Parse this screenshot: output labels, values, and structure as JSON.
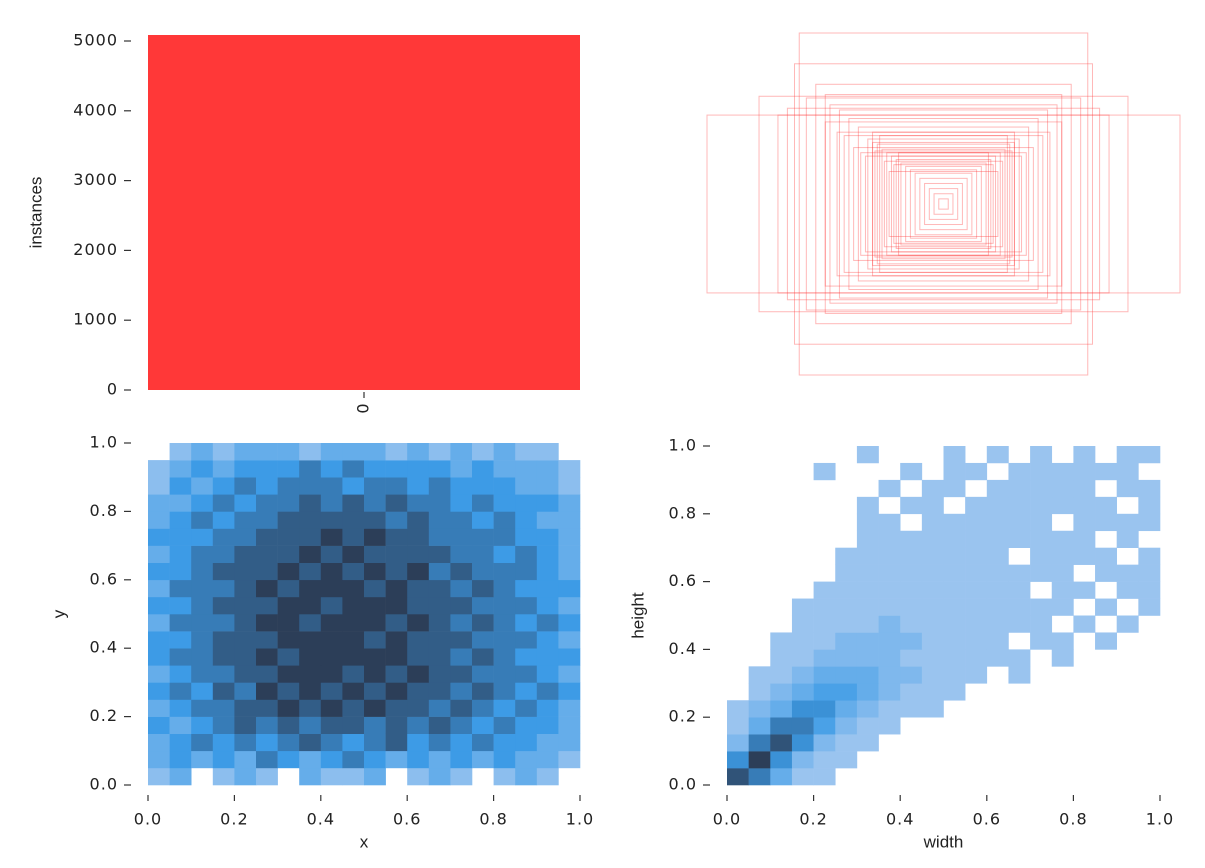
{
  "chart_data": [
    {
      "type": "bar",
      "ylabel": "instances",
      "categories": [
        "0"
      ],
      "values": [
        5086
      ],
      "color": "#ff3838",
      "ylim": [
        0,
        5086
      ],
      "yticks": [
        0,
        1000,
        2000,
        3000,
        4000,
        5000
      ]
    },
    {
      "type": "boxes",
      "color": "#ff3333",
      "widths": [
        1.0,
        0.61,
        0.63,
        0.78,
        0.58,
        0.54,
        0.48,
        0.44,
        0.4,
        0.36,
        0.5,
        0.3,
        0.32,
        0.28,
        0.26,
        0.24,
        0.22,
        0.2,
        0.18,
        0.16,
        0.14,
        0.12,
        0.1,
        0.08,
        0.06,
        0.04,
        0.02,
        0.35,
        0.3,
        0.42,
        0.27,
        0.38,
        0.45,
        0.25,
        0.33,
        0.29,
        0.21,
        0.19,
        0.23,
        0.66,
        0.7,
        0.5
      ],
      "heights": [
        0.52,
        1.0,
        0.82,
        0.63,
        0.62,
        0.7,
        0.58,
        0.55,
        0.5,
        0.45,
        0.48,
        0.42,
        0.38,
        0.35,
        0.32,
        0.3,
        0.28,
        0.26,
        0.24,
        0.22,
        0.2,
        0.18,
        0.15,
        0.12,
        0.09,
        0.06,
        0.03,
        0.3,
        0.36,
        0.4,
        0.4,
        0.33,
        0.42,
        0.25,
        0.28,
        0.31,
        0.23,
        0.3,
        0.19,
        0.56,
        0.52,
        0.64
      ]
    },
    {
      "type": "heatmap",
      "xlabel": "x",
      "ylabel": "y",
      "xlim": [
        0,
        1
      ],
      "ylim": [
        0,
        1
      ],
      "xticks": [
        {
          "value": 0,
          "label": "0.0"
        },
        0.2,
        0.4,
        0.6,
        0.8,
        {
          "value": 1,
          "label": "1.0"
        }
      ],
      "yticks": [
        {
          "value": 0,
          "label": "0.0"
        },
        0.2,
        0.4,
        0.6,
        0.8,
        {
          "value": 1,
          "label": "1.0"
        }
      ],
      "xbins": [
        0,
        0.05,
        0.1,
        0.15,
        0.2,
        0.25,
        0.3,
        0.35,
        0.4,
        0.45,
        0.5,
        0.55,
        0.6,
        0.65,
        0.7,
        0.75,
        0.8,
        0.85,
        0.9,
        0.95,
        1
      ],
      "ybins": [
        0,
        0.05,
        0.1,
        0.15,
        0.2,
        0.25,
        0.3,
        0.35,
        0.4,
        0.45,
        0.5,
        0.55,
        0.6,
        0.65,
        0.7,
        0.75,
        0.8,
        0.85,
        0.9,
        0.95,
        1
      ],
      "counts": [
        [
          1,
          2,
          0,
          1,
          2,
          1,
          0,
          2,
          1,
          1,
          2,
          0,
          1,
          2,
          1,
          0,
          1,
          2,
          1,
          0
        ],
        [
          2,
          3,
          2,
          3,
          2,
          4,
          3,
          2,
          3,
          4,
          3,
          2,
          3,
          2,
          3,
          2,
          3,
          2,
          2,
          1
        ],
        [
          2,
          3,
          4,
          3,
          4,
          3,
          4,
          5,
          4,
          3,
          4,
          5,
          3,
          4,
          3,
          4,
          3,
          3,
          2,
          2
        ],
        [
          3,
          2,
          3,
          4,
          5,
          4,
          5,
          4,
          5,
          5,
          4,
          5,
          4,
          5,
          4,
          3,
          4,
          3,
          3,
          2
        ],
        [
          2,
          3,
          4,
          4,
          5,
          5,
          6,
          5,
          6,
          5,
          6,
          5,
          5,
          4,
          5,
          4,
          3,
          4,
          3,
          2
        ],
        [
          3,
          4,
          3,
          5,
          4,
          6,
          5,
          6,
          5,
          6,
          5,
          6,
          5,
          5,
          4,
          5,
          4,
          3,
          4,
          3
        ],
        [
          2,
          3,
          4,
          4,
          5,
          5,
          6,
          6,
          6,
          5,
          6,
          5,
          6,
          5,
          5,
          4,
          4,
          4,
          3,
          2
        ],
        [
          3,
          4,
          4,
          5,
          5,
          6,
          5,
          6,
          6,
          6,
          6,
          6,
          5,
          5,
          4,
          5,
          4,
          3,
          3,
          3
        ],
        [
          3,
          3,
          4,
          5,
          5,
          5,
          6,
          6,
          6,
          6,
          5,
          6,
          5,
          5,
          5,
          4,
          4,
          4,
          3,
          2
        ],
        [
          2,
          4,
          4,
          4,
          5,
          6,
          6,
          5,
          6,
          6,
          6,
          5,
          6,
          5,
          4,
          5,
          4,
          3,
          4,
          3
        ],
        [
          3,
          3,
          4,
          5,
          5,
          5,
          6,
          6,
          5,
          6,
          6,
          6,
          5,
          5,
          5,
          4,
          4,
          4,
          3,
          2
        ],
        [
          2,
          4,
          4,
          4,
          5,
          6,
          5,
          6,
          6,
          6,
          5,
          6,
          5,
          5,
          4,
          5,
          4,
          3,
          3,
          3
        ],
        [
          3,
          3,
          4,
          5,
          5,
          5,
          6,
          5,
          6,
          5,
          6,
          5,
          6,
          4,
          5,
          4,
          4,
          4,
          3,
          2
        ],
        [
          2,
          3,
          4,
          4,
          5,
          5,
          5,
          6,
          5,
          6,
          5,
          5,
          5,
          5,
          4,
          4,
          3,
          4,
          3,
          2
        ],
        [
          3,
          3,
          3,
          4,
          4,
          5,
          5,
          5,
          6,
          5,
          6,
          5,
          5,
          4,
          4,
          4,
          4,
          3,
          3,
          2
        ],
        [
          2,
          3,
          4,
          3,
          4,
          4,
          5,
          5,
          5,
          5,
          5,
          4,
          5,
          4,
          4,
          3,
          4,
          3,
          2,
          2
        ],
        [
          2,
          2,
          3,
          4,
          3,
          4,
          4,
          5,
          4,
          5,
          4,
          5,
          4,
          4,
          3,
          4,
          3,
          3,
          3,
          2
        ],
        [
          1,
          3,
          2,
          3,
          4,
          3,
          4,
          4,
          4,
          3,
          4,
          4,
          3,
          4,
          3,
          3,
          3,
          2,
          2,
          1
        ],
        [
          1,
          2,
          3,
          2,
          3,
          3,
          3,
          4,
          3,
          4,
          3,
          3,
          3,
          3,
          2,
          3,
          2,
          2,
          2,
          1
        ],
        [
          0,
          1,
          2,
          1,
          2,
          2,
          2,
          1,
          2,
          2,
          2,
          1,
          2,
          1,
          2,
          1,
          2,
          1,
          1,
          0
        ]
      ]
    },
    {
      "type": "heatmap",
      "xlabel": "width",
      "ylabel": "height",
      "xlim": [
        0,
        1
      ],
      "ylim": [
        0,
        1
      ],
      "xticks": [
        {
          "value": 0,
          "label": "0.0"
        },
        0.2,
        0.4,
        0.6,
        0.8,
        {
          "value": 1,
          "label": "1.0"
        }
      ],
      "yticks": [
        {
          "value": 0,
          "label": "0.0"
        },
        0.2,
        0.4,
        0.6,
        0.8,
        {
          "value": 1,
          "label": "1.0"
        }
      ],
      "xbins": [
        0,
        0.05,
        0.1,
        0.15,
        0.2,
        0.25,
        0.3,
        0.35,
        0.4,
        0.45,
        0.5,
        0.55,
        0.6,
        0.65,
        0.7,
        0.75,
        0.8,
        0.85,
        0.9,
        0.95,
        1
      ],
      "ybins": [
        0,
        0.05,
        0.1,
        0.15,
        0.2,
        0.25,
        0.3,
        0.35,
        0.4,
        0.45,
        0.5,
        0.55,
        0.6,
        0.65,
        0.7,
        0.75,
        0.8,
        0.85,
        0.9,
        0.95,
        1
      ],
      "counts": [
        [
          8,
          6,
          3,
          1,
          1,
          0,
          0,
          0,
          0,
          0,
          0,
          0,
          0,
          0,
          0,
          0,
          0,
          0,
          0,
          0
        ],
        [
          5,
          9,
          5,
          2,
          1,
          1,
          0,
          0,
          0,
          0,
          0,
          0,
          0,
          0,
          0,
          0,
          0,
          0,
          0,
          0
        ],
        [
          2,
          6,
          8,
          5,
          2,
          1,
          1,
          0,
          0,
          0,
          0,
          0,
          0,
          0,
          0,
          0,
          0,
          0,
          0,
          0
        ],
        [
          1,
          3,
          6,
          6,
          4,
          2,
          1,
          1,
          0,
          0,
          0,
          0,
          0,
          0,
          0,
          0,
          0,
          0,
          0,
          0
        ],
        [
          1,
          2,
          3,
          5,
          5,
          3,
          2,
          1,
          1,
          1,
          0,
          0,
          0,
          0,
          0,
          0,
          0,
          0,
          0,
          0
        ],
        [
          0,
          1,
          2,
          3,
          4,
          4,
          3,
          2,
          1,
          1,
          1,
          0,
          0,
          0,
          0,
          0,
          0,
          0,
          0,
          0
        ],
        [
          0,
          1,
          1,
          2,
          3,
          3,
          3,
          2,
          2,
          1,
          1,
          1,
          0,
          1,
          0,
          0,
          0,
          0,
          0,
          0
        ],
        [
          0,
          0,
          1,
          1,
          2,
          2,
          2,
          2,
          1,
          1,
          1,
          1,
          1,
          1,
          0,
          1,
          0,
          0,
          0,
          0
        ],
        [
          0,
          0,
          1,
          1,
          1,
          2,
          2,
          2,
          2,
          1,
          1,
          1,
          1,
          0,
          1,
          1,
          0,
          1,
          0,
          0
        ],
        [
          0,
          0,
          0,
          1,
          1,
          1,
          1,
          2,
          1,
          1,
          1,
          1,
          1,
          1,
          1,
          0,
          1,
          0,
          1,
          0
        ],
        [
          0,
          0,
          0,
          1,
          1,
          1,
          1,
          1,
          1,
          1,
          1,
          1,
          1,
          1,
          1,
          1,
          0,
          1,
          0,
          1
        ],
        [
          0,
          0,
          0,
          0,
          1,
          1,
          1,
          1,
          1,
          1,
          1,
          1,
          1,
          1,
          0,
          1,
          1,
          0,
          1,
          1
        ],
        [
          0,
          0,
          0,
          0,
          0,
          1,
          1,
          1,
          1,
          1,
          1,
          1,
          1,
          1,
          1,
          1,
          0,
          1,
          1,
          1
        ],
        [
          0,
          0,
          0,
          0,
          0,
          1,
          1,
          1,
          1,
          1,
          1,
          1,
          1,
          0,
          1,
          1,
          1,
          1,
          0,
          1
        ],
        [
          0,
          0,
          0,
          0,
          0,
          0,
          1,
          1,
          1,
          1,
          1,
          1,
          1,
          1,
          1,
          1,
          1,
          0,
          1,
          0
        ],
        [
          0,
          0,
          0,
          0,
          0,
          0,
          1,
          1,
          0,
          1,
          1,
          1,
          1,
          1,
          1,
          0,
          1,
          1,
          1,
          1
        ],
        [
          0,
          0,
          0,
          0,
          0,
          0,
          1,
          0,
          1,
          1,
          0,
          1,
          1,
          1,
          1,
          1,
          1,
          1,
          0,
          1
        ],
        [
          0,
          0,
          0,
          0,
          0,
          0,
          0,
          1,
          0,
          1,
          1,
          0,
          1,
          1,
          1,
          1,
          1,
          0,
          1,
          1
        ],
        [
          0,
          0,
          0,
          0,
          1,
          0,
          0,
          0,
          1,
          0,
          1,
          1,
          0,
          1,
          1,
          1,
          1,
          1,
          1,
          0
        ],
        [
          0,
          0,
          0,
          0,
          0,
          0,
          1,
          0,
          0,
          0,
          1,
          0,
          1,
          0,
          1,
          0,
          1,
          0,
          1,
          1
        ]
      ]
    }
  ]
}
